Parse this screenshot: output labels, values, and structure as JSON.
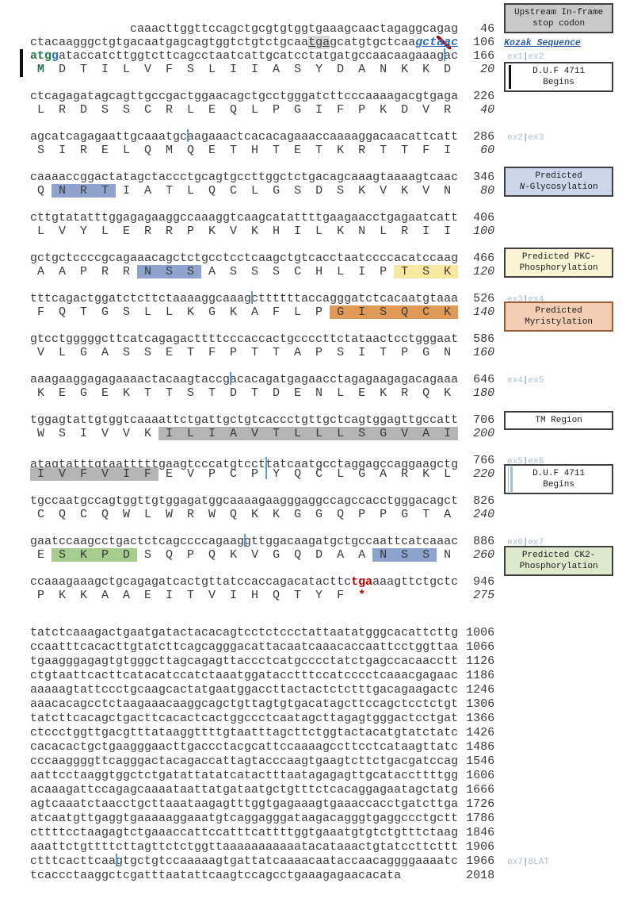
{
  "figure": {
    "description_labels": {
      "upstream_stop_box": [
        "Upstream In-frame",
        "stop codon"
      ],
      "kozak_label": "Kozak Sequence",
      "duf_begins_box": [
        "D.U.F 4711",
        "Begins"
      ],
      "n_glyc_box": [
        "Predicted",
        "N-Glycosylation"
      ],
      "pkc_box": [
        "Predicted PKC-",
        "Phosphorylation"
      ],
      "myr_box": [
        "Predicted",
        "Myristylation"
      ],
      "tm_box": [
        "TM Region"
      ],
      "ck2_box": [
        "Predicted CK2-",
        "Phosphorylation"
      ],
      "exon_boundaries": [
        "ex1|ex2",
        "ex2|ex3",
        "ex3|ex4",
        "ex4|ex5",
        "ex5|ex6",
        "ex6|ex7",
        "ex7|BLAT"
      ]
    }
  },
  "colors": {
    "sequence_text": "#3a3a3a",
    "number_text": "#3a3a3a",
    "start_codon_green": "#1f7a45",
    "kozak_g_blue": "#2f6fc1",
    "kozak_label_blue": "#2a5db0",
    "stop_red": "#c00000",
    "exon_line_blue": "#5b9bd5",
    "exon_label_blue": "#aabfd0",
    "hl_blue": "#8fa3cf",
    "hl_yellow": "#f8e79e",
    "hl_orange": "#e09a56",
    "hl_gray": "#b5b5b5",
    "hl_green": "#a6cc8e",
    "stop_gray_bg": "#d9d9d9",
    "box_gray_bg": "#c9c9c9",
    "box_blue_bg": "#ccd5ea",
    "box_yellow_bg": "#faf3d4",
    "box_orange_bg": "#f2cdb2",
    "box_green_bg": "#dde8cd",
    "box_border_dark": "#3f3f3f",
    "box_border_brown": "#9c5a3c"
  },
  "lines": [
    {
      "type": "nt",
      "num": "46",
      "seg": [
        [
          "              caaacttggttccagctgcgtgtggtgaaagcaactagaggcagag",
          ""
        ]
      ],
      "anno": {
        "kind": "box",
        "name": "annotation-box-upstream-stop-codon",
        "style": "gray",
        "lines": [
          "Upstream In-frame",
          "stop codon"
        ]
      }
    },
    {
      "type": "nt",
      "num": "106",
      "seg": [
        [
          "ctacaagggctgtgacaatgagcagtggtctgtctgcaa",
          ""
        ],
        [
          "tga",
          "hl-stop-gray"
        ],
        [
          "gcatgtgctcaa",
          ""
        ],
        [
          "gct",
          "kozak-nt"
        ],
        [
          "aa",
          "kozak-nt red-strike"
        ],
        [
          "c",
          "kozak-nt"
        ]
      ],
      "anno": {
        "kind": "label",
        "name": "kozak-sequence-label",
        "style": "kozak",
        "text": "Kozak Sequence"
      }
    },
    {
      "type": "nt",
      "num": "166",
      "leftbar": true,
      "seg": [
        [
          "atg",
          "start-codon"
        ],
        [
          "g",
          "kozak-g"
        ],
        [
          "ataccatcttggtcttcagcctaatcattgcatcctatgatgccaacaagaaag",
          ""
        ],
        [
          "",
          "mark"
        ],
        [
          "ac",
          ""
        ]
      ],
      "anno": {
        "kind": "exon",
        "name": "exon-boundary-ex1-ex2",
        "text": "ex1|ex2"
      }
    },
    {
      "type": "aa",
      "num": "20",
      "seg": [
        [
          " M ",
          "aa-start"
        ],
        [
          " D  T  I  L  V  F  S  L  I  I  A  S  Y  D  A  N  K  K  D ",
          ""
        ]
      ],
      "anno": {
        "kind": "box",
        "name": "annotation-box-duf-4711-begins-1",
        "style": "duf-black",
        "lines": [
          "D.U.F 4711",
          "Begins"
        ]
      }
    },
    {
      "type": "gap"
    },
    {
      "type": "nt",
      "num": "226",
      "seg": [
        [
          "ctcagagatagcagttgccgactggaacagctgcctgggatcttcccaaaagacgtgaga",
          ""
        ]
      ]
    },
    {
      "type": "aa",
      "num": "40",
      "seg": [
        [
          " L  R  D  S  S  C  R  L  E  Q  L  P  G  I  F  P  K  D  V  R ",
          ""
        ]
      ]
    },
    {
      "type": "gap"
    },
    {
      "type": "nt",
      "num": "286",
      "seg": [
        [
          "agcatcagagaattgcaaatgc",
          ""
        ],
        [
          "",
          "mark"
        ],
        [
          "aagaaactcacacagaaaccaaaaggacaacattcatt",
          ""
        ]
      ],
      "anno": {
        "kind": "exon",
        "name": "exon-boundary-ex2-ex3",
        "text": "ex2|ex3"
      }
    },
    {
      "type": "aa",
      "num": "60",
      "seg": [
        [
          " S  I  R  E  L  Q  M  Q  E  T  H  T  E  T  K  R  T  T  F  I ",
          ""
        ]
      ]
    },
    {
      "type": "gap"
    },
    {
      "type": "nt",
      "num": "346",
      "seg": [
        [
          "caaaaccggactatagctaccctgcagtgccttggctctgacagcaaagtaaaagtcaac",
          ""
        ]
      ],
      "anno": {
        "kind": "box",
        "name": "annotation-box-n-glycosylation",
        "style": "nglyc",
        "lines": [
          "Predicted",
          "N-Glycosylation"
        ]
      }
    },
    {
      "type": "aa",
      "num": "80",
      "seg": [
        [
          " Q ",
          ""
        ],
        [
          " N  R  T ",
          "hl-blue"
        ],
        [
          " I  A  T  L  Q  C  L  G  S  D  S  K  V  K  V  N ",
          ""
        ]
      ]
    },
    {
      "type": "gap"
    },
    {
      "type": "nt",
      "num": "406",
      "seg": [
        [
          "cttgtatatttggagagaaggccaaaggtcaagcatattttgaagaacctgagaatcatt",
          ""
        ]
      ]
    },
    {
      "type": "aa",
      "num": "100",
      "seg": [
        [
          " L  V  Y  L  E  R  R  P  K  V  K  H  I  L  K  N  L  R  I  I ",
          ""
        ]
      ]
    },
    {
      "type": "gap"
    },
    {
      "type": "nt",
      "num": "466",
      "seg": [
        [
          "gctgctccccgcagaaacagctctgcctcctcaagctgtcacctaatccccacatccaag",
          ""
        ]
      ],
      "anno": {
        "kind": "box",
        "name": "annotation-box-pkc-phosphorylation",
        "style": "pkc",
        "lines": [
          "Predicted PKC-",
          "Phosphorylation"
        ]
      }
    },
    {
      "type": "aa",
      "num": "120",
      "seg": [
        [
          " A  A  P  R  R ",
          ""
        ],
        [
          " N  S  S ",
          "hl-blue"
        ],
        [
          " A  S  S  S  C  H  L  I  P ",
          ""
        ],
        [
          " T  S  K ",
          "hl-yellow"
        ]
      ]
    },
    {
      "type": "gap"
    },
    {
      "type": "nt",
      "num": "526",
      "seg": [
        [
          "tttcagactggatctcttctaaaaggcaaag",
          ""
        ],
        [
          "",
          "mark"
        ],
        [
          "cttttttaccagggatctcacaatgtaaa",
          ""
        ]
      ],
      "anno": {
        "kind": "exon",
        "name": "exon-boundary-ex3-ex4",
        "text": "ex3|ex4"
      }
    },
    {
      "type": "aa",
      "num": "140",
      "seg": [
        [
          " F  Q  T  G  S  L  L  K  G  K  A  F  L  P ",
          ""
        ],
        [
          " G  I  S  Q  C  K ",
          "hl-orange"
        ]
      ],
      "anno": {
        "kind": "box",
        "name": "annotation-box-myristylation",
        "style": "myr",
        "lines": [
          "Predicted",
          "Myristylation"
        ]
      }
    },
    {
      "type": "gap"
    },
    {
      "type": "nt",
      "num": "586",
      "seg": [
        [
          "gtcctgggggcttcatcagagacttttcccaccactgccccttctataactcctgggaat",
          ""
        ]
      ]
    },
    {
      "type": "aa",
      "num": "160",
      "seg": [
        [
          " V  L  G  A  S  S  E  T  F  P  T  T  A  P  S  I  T  P  G  N ",
          ""
        ]
      ]
    },
    {
      "type": "gap"
    },
    {
      "type": "nt",
      "num": "646",
      "seg": [
        [
          "aaagaaggagagaaaactacaagtaccg",
          ""
        ],
        [
          "",
          "mark"
        ],
        [
          "acacagatgagaacctagagaagagacagaaa",
          ""
        ]
      ],
      "anno": {
        "kind": "exon",
        "name": "exon-boundary-ex4-ex5",
        "text": "ex4|ex5"
      }
    },
    {
      "type": "aa",
      "num": "180",
      "seg": [
        [
          " K  E  G  E  K  T  T  S  T  D  T  D  E  N  L  E  K  R  Q  K ",
          ""
        ]
      ]
    },
    {
      "type": "gap"
    },
    {
      "type": "nt",
      "num": "706",
      "seg": [
        [
          "tggagtattgtggtcaaaattctgattgctgtcaccctgttgctcagtggagttgccatt",
          ""
        ]
      ],
      "anno": {
        "kind": "box",
        "name": "annotation-box-tm-region",
        "style": "tm",
        "lines": [
          "TM Region"
        ]
      }
    },
    {
      "type": "aa",
      "num": "200",
      "seg": [
        [
          " W  S  I  V  V  K ",
          ""
        ],
        [
          " I  L  I  A  V  T  L  L  L  S  G  V  A  I ",
          "hl-gray"
        ]
      ]
    },
    {
      "type": "gap"
    },
    {
      "type": "nt",
      "num": "766",
      "seg": [
        [
          "atagtatttgtaatttttgaagtcccatgtcct",
          ""
        ],
        [
          "",
          "mark tall"
        ],
        [
          "tatcaatgcctaggagccaggaagctg",
          ""
        ]
      ],
      "anno": {
        "kind": "exon",
        "name": "exon-boundary-ex5-ex6",
        "text": "ex5|ex6"
      }
    },
    {
      "type": "aa",
      "num": "220",
      "seg": [
        [
          " I  V  F  V  I  F ",
          "hl-gray"
        ],
        [
          " E  V  P  C  P ",
          ""
        ],
        [
          "",
          "mark"
        ],
        [
          " Y  Q  C  L  G  A  R  K  L ",
          ""
        ]
      ],
      "anno": {
        "kind": "box",
        "name": "annotation-box-duf-4711-begins-2",
        "style": "duf-blue",
        "lines": [
          "D.U.F 4711",
          "Begins"
        ]
      }
    },
    {
      "type": "gap"
    },
    {
      "type": "nt",
      "num": "826",
      "seg": [
        [
          "tgccaatgccagtggttgtggagatggcaaaagaagggaggccagccacctgggacagct",
          ""
        ]
      ]
    },
    {
      "type": "aa",
      "num": "240",
      "seg": [
        [
          " C  Q  C  Q  W  L  W  R  W  Q  K  K  G  G  Q  P  P  G  T  A ",
          ""
        ]
      ]
    },
    {
      "type": "gap"
    },
    {
      "type": "nt",
      "num": "886",
      "seg": [
        [
          "gaatccaagcctgactctcagccccagaag",
          ""
        ],
        [
          "",
          "mark"
        ],
        [
          "gttggacaagatgctgccaattcatcaaac",
          ""
        ]
      ],
      "anno": {
        "kind": "exon",
        "name": "exon-boundary-ex6-ex7",
        "text": "ex6|ex7"
      }
    },
    {
      "type": "aa",
      "num": "260",
      "seg": [
        [
          " E ",
          ""
        ],
        [
          " S  K  P  D ",
          "hl-green"
        ],
        [
          " S  Q  P  Q  K  V  G  Q  D  A  A ",
          ""
        ],
        [
          " N  S  S ",
          "hl-blue"
        ],
        [
          " N ",
          ""
        ]
      ],
      "anno": {
        "kind": "box",
        "name": "annotation-box-ck2-phosphorylation",
        "style": "ck2",
        "lines": [
          "Predicted CK2-",
          "Phosphorylation"
        ]
      }
    },
    {
      "type": "gap"
    },
    {
      "type": "nt",
      "num": "946",
      "seg": [
        [
          "ccaaagaaagctgcagagatcactgttatccaccagacatacttc",
          ""
        ],
        [
          "tga",
          "stop-red"
        ],
        [
          "aaagttctgctc",
          ""
        ]
      ]
    },
    {
      "type": "aa",
      "num": "275",
      "seg": [
        [
          " P  K  K  A  A  E  I  T  V  I  H  Q  T  Y  F ",
          ""
        ],
        [
          " * ",
          "stop-red"
        ],
        [
          "            ",
          ""
        ]
      ]
    },
    {
      "type": "biggap"
    },
    {
      "type": "utr",
      "num": "1006",
      "seg": [
        [
          "tatctcaaagactgaatgatactacacagtcctctccctattaatatgggcacattcttg",
          ""
        ]
      ]
    },
    {
      "type": "utr",
      "num": "1066",
      "seg": [
        [
          "ccaatttcacacttgtatcttcagcagggacattacaatcaaacaccaattcctggttaa",
          ""
        ]
      ]
    },
    {
      "type": "utr",
      "num": "1126",
      "seg": [
        [
          "tgaagggagagtgtgggcttagcagagttaccctcatgcccctatctgagccacaacctt",
          ""
        ]
      ]
    },
    {
      "type": "utr",
      "num": "1186",
      "seg": [
        [
          "ctgtaattcacttcatacatccatctaaatggatacctttccatcccctcaaacgagaac",
          ""
        ]
      ]
    },
    {
      "type": "utr",
      "num": "1246",
      "seg": [
        [
          "aaaaagtattccctgcaagcactatgaatggaccttactactctctttgacagaagactc",
          ""
        ]
      ]
    },
    {
      "type": "utr",
      "num": "1306",
      "seg": [
        [
          "aaacacagcctctaagaaacaaggcagctgttagtgtgacatagcttccagctcctctgt",
          ""
        ]
      ]
    },
    {
      "type": "utr",
      "num": "1366",
      "seg": [
        [
          "tatcttcacagctgacttcacactcactggccctcaatagcttagagtgggactcctgat",
          ""
        ]
      ]
    },
    {
      "type": "utr",
      "num": "1426",
      "seg": [
        [
          "ctccctggttgacgtttataaggttttgtaatttagcttctggtactacatgtatctatc",
          ""
        ]
      ]
    },
    {
      "type": "utr",
      "num": "1486",
      "seg": [
        [
          "cacacactgctgaagggaacttgaccctacgcattccaaaagccttcctcataagttatc",
          ""
        ]
      ]
    },
    {
      "type": "utr",
      "num": "1546",
      "seg": [
        [
          "cccaaggggttcagggactacagaccattagtacccaagtgaagtcttctgacgatccag",
          ""
        ]
      ]
    },
    {
      "type": "utr",
      "num": "1606",
      "seg": [
        [
          "aattcctaaggtggctctgatattatatcatactttaatagagagttgcataccttttgg",
          ""
        ]
      ]
    },
    {
      "type": "utr",
      "num": "1666",
      "seg": [
        [
          "acaaagattccagagcaaaataattatgataatgctgtttctcacaggagaatagctatg",
          ""
        ]
      ]
    },
    {
      "type": "utr",
      "num": "1726",
      "seg": [
        [
          "agtcaaatctaacctgcttaaataagagtttggtgagaaagtgaaaccacctgatcttga",
          ""
        ]
      ]
    },
    {
      "type": "utr",
      "num": "1786",
      "seg": [
        [
          "atcaatgttgaggtgaaaaaggaaatgtcaggagggataagacagggtgaggccctgctt",
          ""
        ]
      ]
    },
    {
      "type": "utr",
      "num": "1846",
      "seg": [
        [
          "cttttcctaagagtctgaaaccattccatttcattttggtgaaatgtgtctgtttctaag",
          ""
        ]
      ]
    },
    {
      "type": "utr",
      "num": "1906",
      "seg": [
        [
          "aaattctgttttcttagttctctggttaaaaaaaaaaatacataaactgtatccttcttt",
          ""
        ]
      ]
    },
    {
      "type": "utr",
      "num": "1966",
      "seg": [
        [
          "ctttcacttcaa",
          ""
        ],
        [
          "",
          "mark"
        ],
        [
          "gtgctgtccaaaaagtgattatcaaaacaataccaacaggggaaaatc",
          ""
        ]
      ],
      "anno": {
        "kind": "exon",
        "name": "exon-boundary-ex7-blat",
        "text": "ex7|BLAT"
      }
    },
    {
      "type": "utr",
      "num": "2018",
      "seg": [
        [
          "tcaccctaaggctcgatttaatattcaagtccagcctgaaagagaacacata        ",
          ""
        ]
      ]
    }
  ]
}
